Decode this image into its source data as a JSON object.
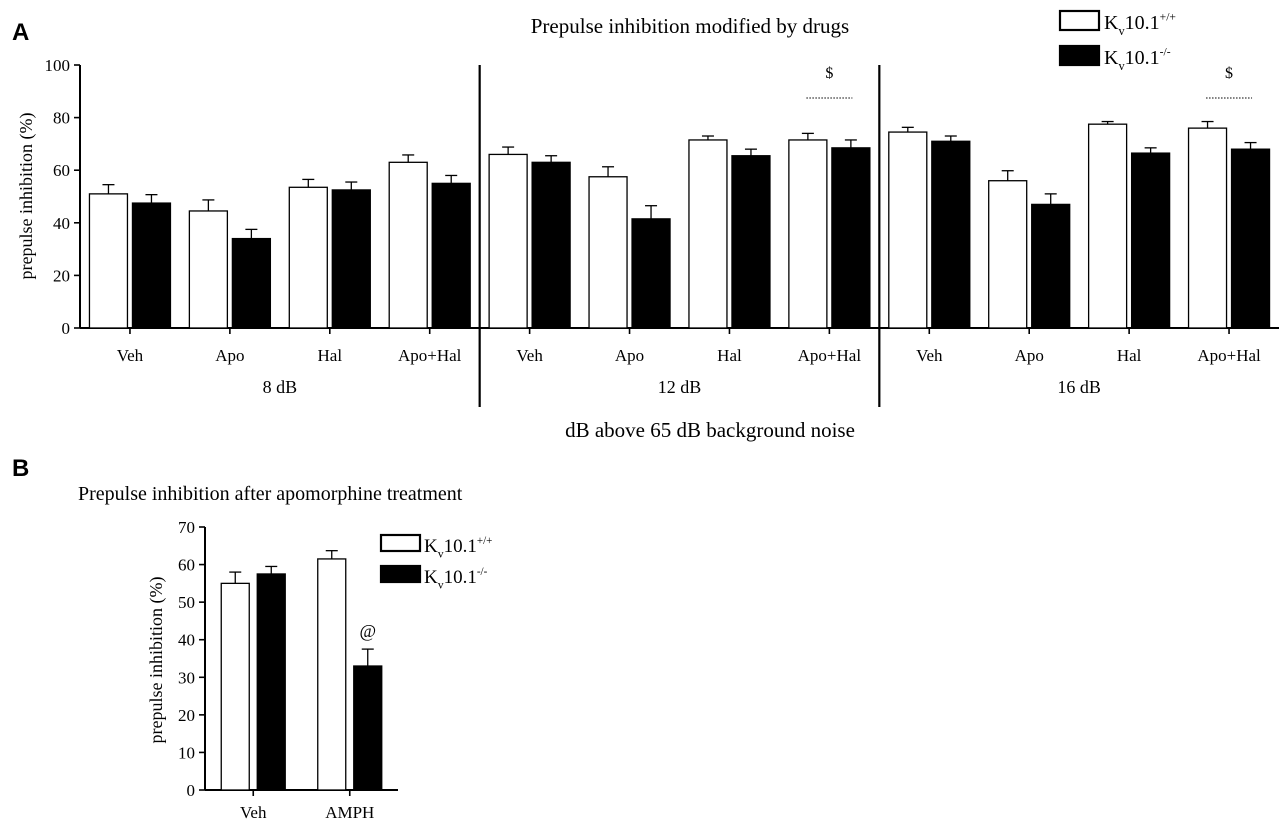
{
  "chart_data": [
    {
      "type": "bar",
      "panel_letter": "A",
      "title": "Prepulse inhibition modified by drugs",
      "xlabel": "dB above 65 dB background noise",
      "ylabel": "prepulse inhibition (%)",
      "ylim": [
        0,
        100
      ],
      "yticks": [
        "0",
        "20",
        "40",
        "60",
        "80",
        "100"
      ],
      "legend_placement": "top-right",
      "series": [
        {
          "name_main": "K",
          "name_sub": "v",
          "name_rest": "10.1",
          "name_sup": "+/+",
          "fill": "#ffffff"
        },
        {
          "name_main": "K",
          "name_sub": "v",
          "name_rest": "10.1",
          "name_sup": "-/-",
          "fill": "#000000"
        }
      ],
      "groups": [
        {
          "label": "8 dB",
          "categories": [
            {
              "label": "Veh",
              "values": [
                51,
                47.5
              ],
              "errors": [
                3.5,
                3.2
              ]
            },
            {
              "label": "Apo",
              "values": [
                44.5,
                34
              ],
              "errors": [
                4.2,
                3.5
              ]
            },
            {
              "label": "Hal",
              "values": [
                53.5,
                52.5
              ],
              "errors": [
                3,
                3
              ]
            },
            {
              "label": "Apo+Hal",
              "values": [
                63,
                55
              ],
              "errors": [
                2.8,
                3
              ]
            }
          ]
        },
        {
          "label": "12 dB",
          "categories": [
            {
              "label": "Veh",
              "values": [
                66,
                63
              ],
              "errors": [
                2.8,
                2.5
              ]
            },
            {
              "label": "Apo",
              "values": [
                57.5,
                41.5
              ],
              "errors": [
                3.8,
                5
              ]
            },
            {
              "label": "Hal",
              "values": [
                71.5,
                65.5
              ],
              "errors": [
                1.5,
                2.5
              ]
            },
            {
              "label": "Apo+Hal",
              "values": [
                71.5,
                68.5
              ],
              "errors": [
                2.5,
                3
              ],
              "annotation": "$"
            }
          ]
        },
        {
          "label": "16 dB",
          "categories": [
            {
              "label": "Veh",
              "values": [
                74.5,
                71
              ],
              "errors": [
                1.8,
                2
              ]
            },
            {
              "label": "Apo",
              "values": [
                56,
                47
              ],
              "errors": [
                3.8,
                4
              ]
            },
            {
              "label": "Hal",
              "values": [
                77.5,
                66.5
              ],
              "errors": [
                1,
                2
              ]
            },
            {
              "label": "Apo+Hal",
              "values": [
                76,
                68
              ],
              "errors": [
                2.5,
                2.5
              ],
              "annotation": "$"
            }
          ]
        }
      ]
    },
    {
      "type": "bar",
      "panel_letter": "B",
      "title": "Prepulse inhibition after apomorphine treatment",
      "ylabel": "prepulse inhibition (%)",
      "ylim": [
        0,
        70
      ],
      "yticks": [
        "0",
        "10",
        "20",
        "30",
        "40",
        "50",
        "60",
        "70"
      ],
      "legend_placement": "top-right",
      "series": [
        {
          "name_main": "K",
          "name_sub": "v",
          "name_rest": "10.1",
          "name_sup": "+/+",
          "fill": "#ffffff"
        },
        {
          "name_main": "K",
          "name_sub": "v",
          "name_rest": "10.1",
          "name_sup": "-/-",
          "fill": "#000000"
        }
      ],
      "categories": [
        {
          "label": "Veh",
          "values": [
            55,
            57.5
          ],
          "errors": [
            3,
            2
          ]
        },
        {
          "label": "AMPH",
          "values": [
            61.5,
            33
          ],
          "errors": [
            2.2,
            4.5
          ],
          "annotation": [
            "",
            "@"
          ]
        }
      ]
    }
  ]
}
